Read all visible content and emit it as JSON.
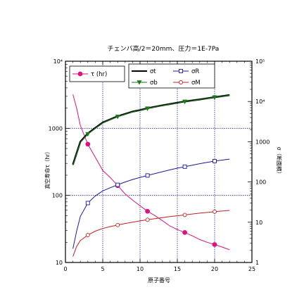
{
  "chart_data": {
    "type": "line",
    "title": "チェンバ高/2＝20mm、圧力＝1E-7Pa",
    "xlabel": "原子番号",
    "ylabel_left": "真空寿命τ（hr）",
    "ylabel_right": "σ（断面積）",
    "x_range": [
      0,
      25
    ],
    "x_ticks": [
      "0",
      "5",
      "10",
      "15",
      "20",
      "25"
    ],
    "y_left_scale": "log",
    "y_left_range": [
      10,
      10000
    ],
    "y_left_ticks": [
      "10",
      "100",
      "1000",
      "10⁴"
    ],
    "y_right_scale": "log",
    "y_right_range": [
      1,
      100000
    ],
    "y_right_ticks": [
      "1",
      "10",
      "100",
      "1000",
      "10⁴",
      "10⁵"
    ],
    "grid": true,
    "legend_left": {
      "entries": [
        {
          "name": "τ (hr)",
          "color": "#e0107f",
          "marker": "circle-filled"
        }
      ]
    },
    "legend_right": {
      "entries": [
        {
          "name": "σt",
          "color": "#000000",
          "marker": "none"
        },
        {
          "name": "σR",
          "color": "#1a1aa0",
          "marker": "square"
        },
        {
          "name": "σb",
          "color": "#1a7a1a",
          "marker": "triangle-down"
        },
        {
          "name": "σM",
          "color": "#c02020",
          "marker": "circle"
        }
      ]
    },
    "series": [
      {
        "name": "τ (hr)",
        "axis": "left",
        "color": "#e0107f",
        "width": 1,
        "x": [
          1,
          1.5,
          2,
          3,
          4,
          5,
          6,
          7,
          8,
          9,
          10,
          11,
          12,
          13,
          14,
          15,
          16,
          17,
          18,
          19,
          20,
          21,
          22
        ],
        "y": [
          3200,
          2000,
          1100,
          580,
          370,
          235,
          185,
          140,
          105,
          85,
          70,
          58,
          50,
          42,
          35,
          31,
          28,
          25,
          22,
          20,
          18.5,
          17,
          15.5
        ],
        "marker_x": [
          3,
          7,
          11,
          16,
          20
        ],
        "marker_y": [
          580,
          140,
          58,
          28,
          18.5
        ],
        "marker": "circle-filled"
      },
      {
        "name": "σt",
        "axis": "right",
        "color": "#000000",
        "width": 2.5,
        "x": [
          1,
          1.5,
          2,
          3,
          4,
          5,
          6,
          7,
          8,
          9,
          10,
          11,
          12,
          13,
          14,
          15,
          16,
          17,
          18,
          19,
          20,
          21,
          22
        ],
        "y": [
          270,
          520,
          1000,
          1600,
          2200,
          3000,
          3600,
          4300,
          4900,
          5600,
          6100,
          6800,
          7400,
          8000,
          8600,
          9300,
          10000,
          10600,
          11200,
          12000,
          12800,
          13600,
          14400
        ],
        "marker": "none"
      },
      {
        "name": "σb",
        "axis": "right",
        "color": "#1a7a1a",
        "width": 1,
        "x": [
          1,
          1.5,
          2,
          3,
          4,
          5,
          6,
          7,
          8,
          9,
          10,
          11,
          12,
          13,
          14,
          15,
          16,
          17,
          18,
          19,
          20,
          21,
          22
        ],
        "y": [
          260,
          500,
          970,
          1550,
          2150,
          2950,
          3550,
          4200,
          4800,
          5500,
          6000,
          6700,
          7300,
          7900,
          8500,
          9200,
          9900,
          10500,
          11100,
          11900,
          12700,
          13500,
          14300
        ],
        "marker_x": [
          3,
          7,
          11,
          16,
          20
        ],
        "marker_y": [
          1550,
          4200,
          6700,
          9900,
          12700
        ],
        "marker": "triangle-down"
      },
      {
        "name": "σR",
        "axis": "right",
        "color": "#1a1aa0",
        "width": 1,
        "x": [
          1,
          1.5,
          2,
          3,
          4,
          5,
          6,
          7,
          8,
          9,
          10,
          11,
          12,
          13,
          14,
          15,
          16,
          17,
          18,
          19,
          20,
          21,
          22
        ],
        "y": [
          2.2,
          6,
          14,
          30,
          45,
          60,
          72,
          85,
          100,
          115,
          130,
          145,
          162,
          180,
          200,
          220,
          240,
          262,
          285,
          308,
          330,
          350,
          370
        ],
        "marker_x": [
          3,
          7,
          11,
          16,
          20
        ],
        "marker_y": [
          30,
          85,
          145,
          240,
          330
        ],
        "marker": "square"
      },
      {
        "name": "σM",
        "axis": "right",
        "color": "#c02020",
        "width": 1,
        "x": [
          1,
          1.5,
          2,
          3,
          4,
          5,
          6,
          7,
          8,
          9,
          10,
          11,
          12,
          13,
          14,
          15,
          16,
          17,
          18,
          19,
          20,
          21,
          22
        ],
        "y": [
          1.4,
          2.5,
          3.5,
          4.8,
          6,
          7,
          7.8,
          8.5,
          9.3,
          10,
          10.8,
          11.5,
          12.3,
          13,
          13.8,
          14.5,
          15.2,
          16,
          16.8,
          17.5,
          18.3,
          19,
          19.7
        ],
        "marker_x": [
          3,
          7,
          11,
          16,
          20
        ],
        "marker_y": [
          4.8,
          8.5,
          11.5,
          15.2,
          18.3
        ],
        "marker": "circle"
      }
    ]
  }
}
